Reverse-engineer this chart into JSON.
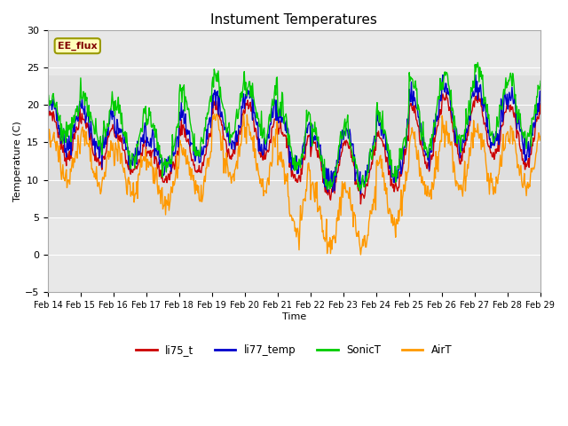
{
  "title": "Instument Temperatures",
  "xlabel": "Time",
  "ylabel": "Temperature (C)",
  "ylim": [
    -5,
    30
  ],
  "yticks": [
    -5,
    0,
    5,
    10,
    15,
    20,
    25,
    30
  ],
  "xlabels": [
    "Feb 14",
    "Feb 15",
    "Feb 16",
    "Feb 17",
    "Feb 18",
    "Feb 19",
    "Feb 20",
    "Feb 21",
    "Feb 22",
    "Feb 23",
    "Feb 24",
    "Feb 25",
    "Feb 26",
    "Feb 27",
    "Feb 28",
    "Feb 29"
  ],
  "series": [
    "li75_t",
    "li77_temp",
    "SonicT",
    "AirT"
  ],
  "colors": [
    "#cc0000",
    "#0000cc",
    "#00cc00",
    "#ff9900"
  ],
  "annotation_text": "EE_flux",
  "plot_bg_color": "#e8e8e8",
  "fig_bg_color": "#ffffff",
  "grid_color": "#ffffff"
}
